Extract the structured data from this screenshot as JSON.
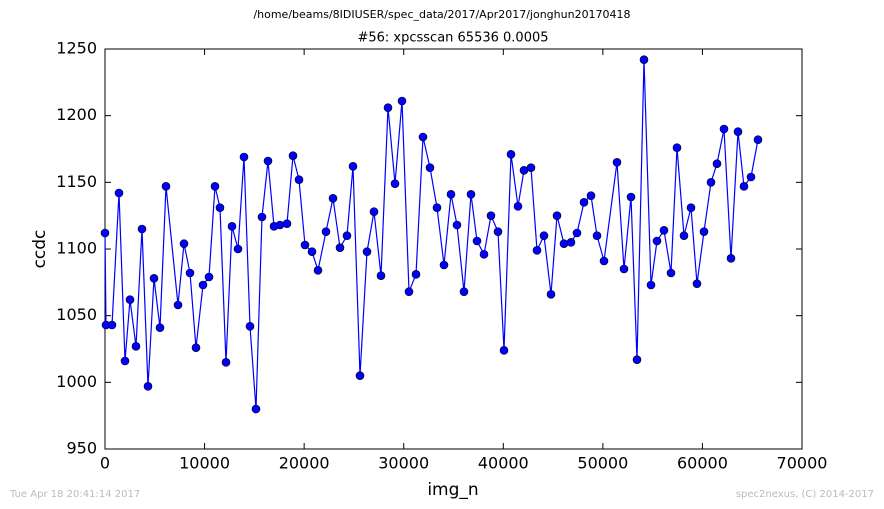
{
  "chart_data": {
    "type": "line",
    "suptitle": "/home/beams/8IDIUSER/spec_data/2017/Apr2017/jonghun20170418",
    "title": "#56: xpcsscan 65536 0.0005",
    "xlabel": "img_n",
    "ylabel": "ccdc",
    "footer_left": "Tue Apr 18 20:41:14 2017",
    "footer_right": "spec2nexus, (C) 2014-2017",
    "xlim": [
      0,
      70000
    ],
    "xticks": [
      0,
      10000,
      20000,
      30000,
      40000,
      50000,
      60000,
      70000
    ],
    "ylim": [
      950,
      1250
    ],
    "yticks": [
      950,
      1000,
      1050,
      1100,
      1150,
      1200,
      1250
    ],
    "x": [
      0,
      100,
      703,
      1406,
      2009,
      2511,
      3113,
      3716,
      4318,
      4921,
      5524,
      6126,
      7331,
      7934,
      8537,
      9139,
      9842,
      10445,
      11047,
      11549,
      12152,
      12755,
      13357,
      13960,
      14562,
      15165,
      15767,
      16370,
      16973,
      17575,
      18278,
      18881,
      19483,
      20086,
      20789,
      21392,
      22195,
      22898,
      23601,
      24304,
      24907,
      25610,
      26313,
      27016,
      27719,
      28422,
      29125,
      29828,
      30531,
      31234,
      31937,
      32640,
      33343,
      34046,
      34749,
      35351,
      36054,
      36757,
      37360,
      38063,
      38766,
      39469,
      40072,
      40775,
      41478,
      42080,
      42783,
      43386,
      44089,
      44792,
      45394,
      46097,
      46800,
      47403,
      48106,
      48809,
      49412,
      50115,
      51420,
      52123,
      52826,
      53429,
      54132,
      54835,
      55437,
      56140,
      56843,
      57446,
      58149,
      58852,
      59454,
      60157,
      60860,
      61463,
      62166,
      62869,
      63572,
      64174,
      64877,
      65580
    ],
    "series": [
      {
        "name": "ccdc",
        "color": "#0000ff",
        "marker_color": "#0000ff",
        "values": [
          1112,
          1043,
          1043,
          1142,
          1016,
          1062,
          1027,
          1115,
          997,
          1078,
          1041,
          1147,
          1058,
          1104,
          1082,
          1026,
          1073,
          1079,
          1147,
          1131,
          1015,
          1117,
          1100,
          1169,
          1042,
          980,
          1124,
          1166,
          1117,
          1118,
          1119,
          1170,
          1152,
          1103,
          1098,
          1084,
          1113,
          1138,
          1101,
          1110,
          1162,
          1005,
          1098,
          1128,
          1080,
          1206,
          1149,
          1211,
          1068,
          1081,
          1184,
          1161,
          1131,
          1088,
          1141,
          1118,
          1068,
          1141,
          1106,
          1096,
          1125,
          1113,
          1024,
          1171,
          1132,
          1159,
          1161,
          1099,
          1110,
          1066,
          1125,
          1104,
          1105,
          1112,
          1135,
          1140,
          1110,
          1091,
          1165,
          1085,
          1139,
          1017,
          1242,
          1073,
          1106,
          1114,
          1082,
          1176,
          1110,
          1131,
          1074,
          1113,
          1150,
          1164,
          1190,
          1093,
          1188,
          1147,
          1154,
          1182
        ]
      }
    ]
  }
}
